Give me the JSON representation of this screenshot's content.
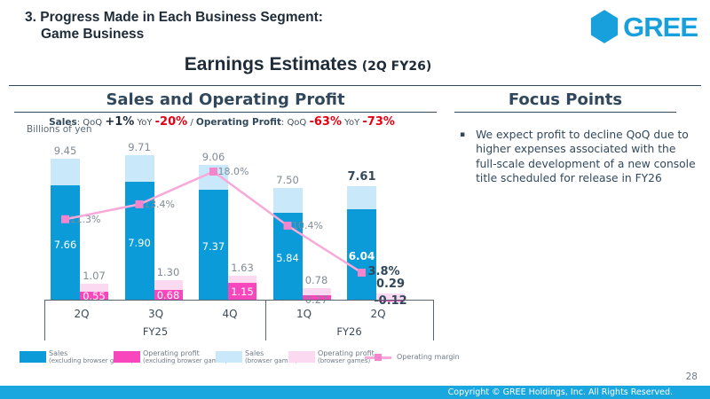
{
  "slide": {
    "title_line1": "3. Progress Made in Each Business Segment:",
    "title_line2": "Game Business",
    "heading": "Earnings Estimates",
    "heading_suffix": "(2Q FY26)",
    "logo_text": "GREE",
    "page_number": "28",
    "footer": "Copyright © GREE Holdings, Inc. All Rights Reserved.",
    "colors": {
      "accent": "#17a0dc",
      "footer_bar": "#1aa6df"
    }
  },
  "left_panel": {
    "title": "Sales and Operating Profit",
    "units": "Billions of yen",
    "stats": [
      {
        "text": "Sales",
        "style": "label"
      },
      {
        "text": ": QoQ ",
        "style": "plain"
      },
      {
        "text": "+1%",
        "style": "pos"
      },
      {
        "text": " YoY ",
        "style": "plain"
      },
      {
        "text": "-20%",
        "style": "neg"
      },
      {
        "text": " / ",
        "style": "plain"
      },
      {
        "text": "Operating Profit",
        "style": "label"
      },
      {
        "text": ": QoQ ",
        "style": "plain"
      },
      {
        "text": "-63%",
        "style": "neg"
      },
      {
        "text": " YoY ",
        "style": "plain"
      },
      {
        "text": "-73%",
        "style": "neg"
      }
    ]
  },
  "right_panel": {
    "title": "Focus Points",
    "bullets": [
      "We expect profit to decline QoQ due to higher expenses associated with the full-scale development of a new console title scheduled for release in FY26"
    ]
  },
  "chart_data": {
    "type": "stacked-bar+line",
    "title": "Sales and Operating Profit",
    "unit": "Billions of yen",
    "categories": [
      "2Q",
      "3Q",
      "4Q",
      "1Q",
      "2Q"
    ],
    "fy_groups": [
      {
        "label": "FY25",
        "count": 3
      },
      {
        "label": "FY26",
        "count": 2
      }
    ],
    "estimate_flags": [
      false,
      false,
      false,
      false,
      true
    ],
    "series": [
      {
        "name": "Sales (excluding browser games)",
        "values": [
          7.66,
          7.9,
          7.37,
          5.84,
          6.04
        ]
      },
      {
        "name": "Sales (browser games)",
        "values": [
          1.79,
          1.81,
          1.69,
          1.66,
          1.57
        ]
      },
      {
        "name": "Operating profit (excluding browser games)",
        "values": [
          0.55,
          0.68,
          1.15,
          0.27,
          -0.12
        ]
      },
      {
        "name": "Operating profit (browser games)",
        "values": [
          0.52,
          0.62,
          0.48,
          0.51,
          0.41
        ]
      }
    ],
    "sales_total": [
      9.45,
      9.71,
      9.06,
      7.5,
      7.61
    ],
    "op_total": [
      1.07,
      1.3,
      1.63,
      0.78,
      0.29
    ],
    "operating_margin_pct": [
      11.3,
      13.4,
      18.0,
      10.4,
      3.8
    ],
    "legend": [
      {
        "kind": "swatch",
        "color": "#0a9bd8",
        "label": "Sales",
        "sub": "(excluding browser games)"
      },
      {
        "kind": "swatch",
        "color": "#f846bc",
        "label": "Operating profit",
        "sub": "(excluding browser games)"
      },
      {
        "kind": "swatch",
        "color": "#c9e9fa",
        "label": "Sales",
        "sub": "(browser games)"
      },
      {
        "kind": "swatch",
        "color": "#fbd9f0",
        "label": "Operating profit",
        "sub": "(browser games)"
      },
      {
        "kind": "line",
        "label": "Operating margin"
      }
    ],
    "colors": {
      "sales_excl": "#0a9bd8",
      "sales_browser": "#c9e9fa",
      "op_excl": "#f846bc",
      "op_browser": "#fbd9f0",
      "margin_line": "#f7a9d9",
      "margin_marker": "#f285cc"
    },
    "ylim": [
      0,
      10
    ],
    "y2lim_pct": [
      0,
      20
    ],
    "grid": false,
    "legend_position": "bottom"
  }
}
